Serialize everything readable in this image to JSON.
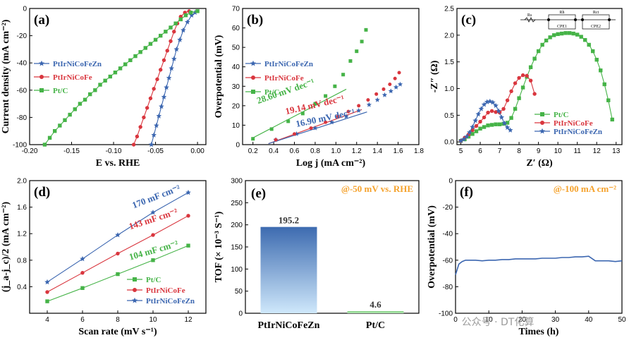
{
  "colors": {
    "blue": "#3b66b0",
    "red": "#d9363e",
    "green": "#45b347",
    "orange": "#f5a22c",
    "axis": "#000000"
  },
  "watermark": "公众号 · DT化算",
  "chart_data": [
    {
      "id": "a",
      "type": "line",
      "panel_label": "(a)",
      "xlabel": "E vs. RHE",
      "ylabel": "Current density (mA cm⁻²)",
      "xlim": [
        -0.2,
        0.01
      ],
      "ylim": [
        -100,
        0
      ],
      "xticks": [
        "-0.20",
        "-0.15",
        "-0.10",
        "-0.05",
        "0.00"
      ],
      "yticks": [
        "0",
        "-20",
        "-40",
        "-60",
        "-80",
        "-100"
      ],
      "legend": "left",
      "series": [
        {
          "name": "PtIrNiCoFeZn",
          "color_key": "blue",
          "marker": "star",
          "x": [
            -0.055,
            -0.052,
            -0.049,
            -0.046,
            -0.043,
            -0.04,
            -0.037,
            -0.034,
            -0.031,
            -0.028,
            -0.025,
            -0.021,
            -0.017,
            -0.012,
            -0.007,
            -0.003
          ],
          "y": [
            -100,
            -93,
            -86,
            -79,
            -72,
            -65,
            -58,
            -51,
            -44,
            -37,
            -30,
            -23,
            -16,
            -10,
            -5,
            -3
          ]
        },
        {
          "name": "PtIrNiCoFe",
          "color_key": "red",
          "marker": "circle",
          "x": [
            -0.076,
            -0.072,
            -0.068,
            -0.064,
            -0.06,
            -0.056,
            -0.052,
            -0.048,
            -0.044,
            -0.04,
            -0.036,
            -0.032,
            -0.028,
            -0.024,
            -0.02,
            -0.015,
            -0.01
          ],
          "y": [
            -100,
            -94,
            -87,
            -80,
            -73,
            -66,
            -59,
            -52,
            -45,
            -38,
            -31,
            -24,
            -17,
            -11,
            -6,
            -3,
            -2
          ]
        },
        {
          "name": "Pt/C",
          "color_key": "green",
          "marker": "square",
          "x": [
            -0.182,
            -0.176,
            -0.17,
            -0.164,
            -0.158,
            -0.152,
            -0.146,
            -0.14,
            -0.134,
            -0.128,
            -0.122,
            -0.116,
            -0.11,
            -0.104,
            -0.098,
            -0.092,
            -0.086,
            -0.08,
            -0.074,
            -0.068,
            -0.062,
            -0.056,
            -0.05,
            -0.044,
            -0.038,
            -0.032,
            -0.026,
            -0.02,
            -0.014,
            -0.008,
            0.0
          ],
          "y": [
            -100,
            -95,
            -90,
            -86,
            -82,
            -78,
            -74,
            -70,
            -67,
            -63,
            -60,
            -56,
            -53,
            -50,
            -47,
            -44,
            -41,
            -38,
            -35,
            -32,
            -29,
            -26,
            -23,
            -20,
            -17,
            -14,
            -11,
            -8,
            -5,
            -3,
            -2
          ]
        }
      ]
    },
    {
      "id": "b",
      "type": "scatter",
      "panel_label": "(b)",
      "xlabel": "Log j (mA cm⁻²)",
      "ylabel": "Overpotential (mV)",
      "xlim": [
        0.1,
        1.8
      ],
      "ylim": [
        0,
        70
      ],
      "xticks": [
        "0.2",
        "0.4",
        "0.6",
        "0.8",
        "1.0",
        "1.2",
        "1.4",
        "1.6",
        "1.8"
      ],
      "yticks": [
        "0",
        "10",
        "20",
        "30",
        "40",
        "50",
        "60",
        "70"
      ],
      "legend": "left",
      "annotations": [
        "28.60 mV dec⁻¹",
        "19.14 mV dec⁻¹",
        "16.90 mV dec⁻¹"
      ],
      "series": [
        {
          "name": "PtIrNiCoFeZn",
          "color_key": "blue",
          "marker": "star",
          "x": [
            0.42,
            0.62,
            0.8,
            0.96,
            1.1,
            1.22,
            1.32,
            1.4,
            1.47,
            1.53,
            1.58,
            1.62
          ],
          "y": [
            2.5,
            5.5,
            8.5,
            11.5,
            14.5,
            17.5,
            20.5,
            23.0,
            25.5,
            27.5,
            29.5,
            31
          ]
        },
        {
          "name": "PtIrNiCoFe",
          "color_key": "red",
          "marker": "circle",
          "x": [
            0.42,
            0.6,
            0.76,
            0.9,
            1.02,
            1.12,
            1.22,
            1.31,
            1.39,
            1.46,
            1.52,
            1.57,
            1.61
          ],
          "y": [
            2.5,
            5.5,
            8.5,
            11.5,
            14.5,
            17,
            20,
            23,
            26,
            28.5,
            31,
            34,
            37
          ]
        },
        {
          "name": "Pt/C",
          "color_key": "green",
          "marker": "square",
          "x": [
            0.2,
            0.38,
            0.54,
            0.68,
            0.8,
            0.9,
            0.99,
            1.07,
            1.14,
            1.2,
            1.25,
            1.29
          ],
          "y": [
            3,
            8,
            12,
            16,
            21,
            25,
            30,
            36,
            43,
            48,
            53,
            59
          ]
        }
      ],
      "fits": [
        {
          "color_key": "green",
          "x": [
            0.2,
            1.1
          ],
          "y": [
            3.5,
            28.5
          ]
        },
        {
          "color_key": "red",
          "x": [
            0.35,
            1.25
          ],
          "y": [
            0.5,
            18.0
          ]
        },
        {
          "color_key": "blue",
          "x": [
            0.35,
            1.3
          ],
          "y": [
            0.5,
            16.8
          ]
        }
      ]
    },
    {
      "id": "c",
      "type": "line",
      "panel_label": "(c)",
      "xlabel": "Z′ (Ω)",
      "ylabel": "-Z″ (Ω)",
      "xlim": [
        4.8,
        13.3
      ],
      "ylim": [
        -0.05,
        2.5
      ],
      "xticks": [
        "5",
        "6",
        "7",
        "8",
        "9",
        "10",
        "11",
        "12",
        "13"
      ],
      "yticks": [
        "0.0",
        "0.5",
        "1.0",
        "1.5",
        "2.0",
        "2.5"
      ],
      "legend": "bottom-right",
      "circuit_labels": [
        "Rs",
        "Rh",
        "Rct",
        "CPE1",
        "CPE2"
      ],
      "series": [
        {
          "name": "Pt/C",
          "color_key": "green",
          "marker": "square",
          "x": [
            5.0,
            5.2,
            5.4,
            5.6,
            5.8,
            6.0,
            6.2,
            6.4,
            6.6,
            6.8,
            7.0,
            7.2,
            7.4,
            7.6,
            7.8,
            8.0,
            8.2,
            8.4,
            8.6,
            8.8,
            9.0,
            9.2,
            9.4,
            9.6,
            9.8,
            10.0,
            10.2,
            10.4,
            10.6,
            10.8,
            11.0,
            11.2,
            11.4,
            11.6,
            11.8,
            12.0,
            12.2,
            12.4,
            12.6,
            12.8
          ],
          "y": [
            0.02,
            0.05,
            0.1,
            0.15,
            0.2,
            0.25,
            0.28,
            0.31,
            0.32,
            0.33,
            0.33,
            0.34,
            0.36,
            0.45,
            0.62,
            0.82,
            1.02,
            1.22,
            1.4,
            1.56,
            1.7,
            1.82,
            1.9,
            1.96,
            2.0,
            2.02,
            2.03,
            2.04,
            2.04,
            2.03,
            2.01,
            1.97,
            1.91,
            1.82,
            1.7,
            1.54,
            1.34,
            1.08,
            0.78,
            0.42
          ]
        },
        {
          "name": "PtIrNiCoFe",
          "color_key": "red",
          "marker": "circle",
          "x": [
            5.0,
            5.2,
            5.4,
            5.6,
            5.8,
            6.0,
            6.2,
            6.4,
            6.6,
            6.8,
            7.0,
            7.2,
            7.4,
            7.6,
            7.8,
            8.0,
            8.2,
            8.4,
            8.6,
            8.8
          ],
          "y": [
            0.02,
            0.08,
            0.14,
            0.22,
            0.3,
            0.38,
            0.46,
            0.55,
            0.58,
            0.56,
            0.55,
            0.62,
            0.78,
            0.95,
            1.1,
            1.2,
            1.25,
            1.24,
            1.15,
            0.9
          ]
        },
        {
          "name": "PtIrNiCoFeZn",
          "color_key": "blue",
          "marker": "star",
          "x": [
            5.0,
            5.15,
            5.3,
            5.45,
            5.6,
            5.75,
            5.9,
            6.05,
            6.2,
            6.35,
            6.5,
            6.65,
            6.8,
            6.95,
            7.1,
            7.25,
            7.4,
            7.55
          ],
          "y": [
            0.02,
            0.05,
            0.1,
            0.18,
            0.28,
            0.4,
            0.52,
            0.62,
            0.7,
            0.75,
            0.76,
            0.74,
            0.68,
            0.58,
            0.46,
            0.35,
            0.27,
            0.22
          ]
        }
      ]
    },
    {
      "id": "d",
      "type": "line",
      "panel_label": "(d)",
      "xlabel": "Scan rate (mV s⁻¹)",
      "ylabel": "(j_a-j_c)/2 (mA cm⁻²)",
      "xlim": [
        3,
        13
      ],
      "ylim": [
        0,
        2.0
      ],
      "xticks": [
        "4",
        "6",
        "8",
        "10",
        "12"
      ],
      "yticks": [
        "0.4",
        "0.8",
        "1.2",
        "1.6",
        "2.0"
      ],
      "legend": "bottom-right",
      "annotations": [
        "170 mF cm⁻²",
        "143 mF cm⁻²",
        "104 mF cm⁻²"
      ],
      "series": [
        {
          "name": "Pt/C",
          "color_key": "green",
          "marker": "square",
          "x": [
            4,
            6,
            8,
            10,
            12
          ],
          "y": [
            0.18,
            0.38,
            0.59,
            0.8,
            1.02
          ]
        },
        {
          "name": "PtIrNiCoFe",
          "color_key": "red",
          "marker": "circle",
          "x": [
            4,
            6,
            8,
            10,
            12
          ],
          "y": [
            0.32,
            0.61,
            0.9,
            1.18,
            1.47
          ]
        },
        {
          "name": "PtIrNiCoFeZn",
          "color_key": "blue",
          "marker": "star",
          "x": [
            4,
            6,
            8,
            10,
            12
          ],
          "y": [
            0.47,
            0.82,
            1.18,
            1.52,
            1.82
          ]
        }
      ]
    },
    {
      "id": "e",
      "type": "bar",
      "panel_label": "(e)",
      "title": "@-50 mV vs. RHE",
      "ylabel": "TOF (× 10⁻³ S⁻¹)",
      "categories": [
        "PtIrNiCoFeZn",
        "Pt/C"
      ],
      "category_colors": [
        "blue",
        "green"
      ],
      "values": [
        195.2,
        4.6
      ],
      "value_labels": [
        "195.2",
        "4.6"
      ],
      "ylim": [
        0,
        300
      ],
      "yticks": [
        "0",
        "50",
        "100",
        "150",
        "200",
        "250",
        "300"
      ]
    },
    {
      "id": "f",
      "type": "line",
      "panel_label": "(f)",
      "title": "@-100 mA cm⁻²",
      "xlabel": "Times (h)",
      "ylabel": "Overpotential (mV)",
      "xlim": [
        0,
        50
      ],
      "ylim": [
        -100,
        0
      ],
      "xticks": [
        "0",
        "10",
        "20",
        "30",
        "40",
        "50"
      ],
      "yticks": [
        "0",
        "-20",
        "-40",
        "-60",
        "-80",
        "-100"
      ],
      "series": [
        {
          "name": "",
          "color_key": "blue",
          "marker": "none",
          "x": [
            0,
            1,
            2,
            3,
            4,
            5,
            6,
            8,
            10,
            12,
            14,
            16,
            18,
            20,
            22,
            24,
            26,
            28,
            30,
            32,
            34,
            36,
            38,
            40,
            42,
            44,
            46,
            48,
            50
          ],
          "y": [
            -71,
            -63,
            -61,
            -60,
            -60,
            -60,
            -60,
            -60.5,
            -60,
            -60,
            -59.5,
            -59.5,
            -59,
            -59,
            -59,
            -59,
            -58.5,
            -58.5,
            -58.5,
            -58,
            -58,
            -57.5,
            -57.5,
            -57,
            -60.5,
            -60.5,
            -60.5,
            -61,
            -60.5
          ]
        }
      ]
    }
  ]
}
